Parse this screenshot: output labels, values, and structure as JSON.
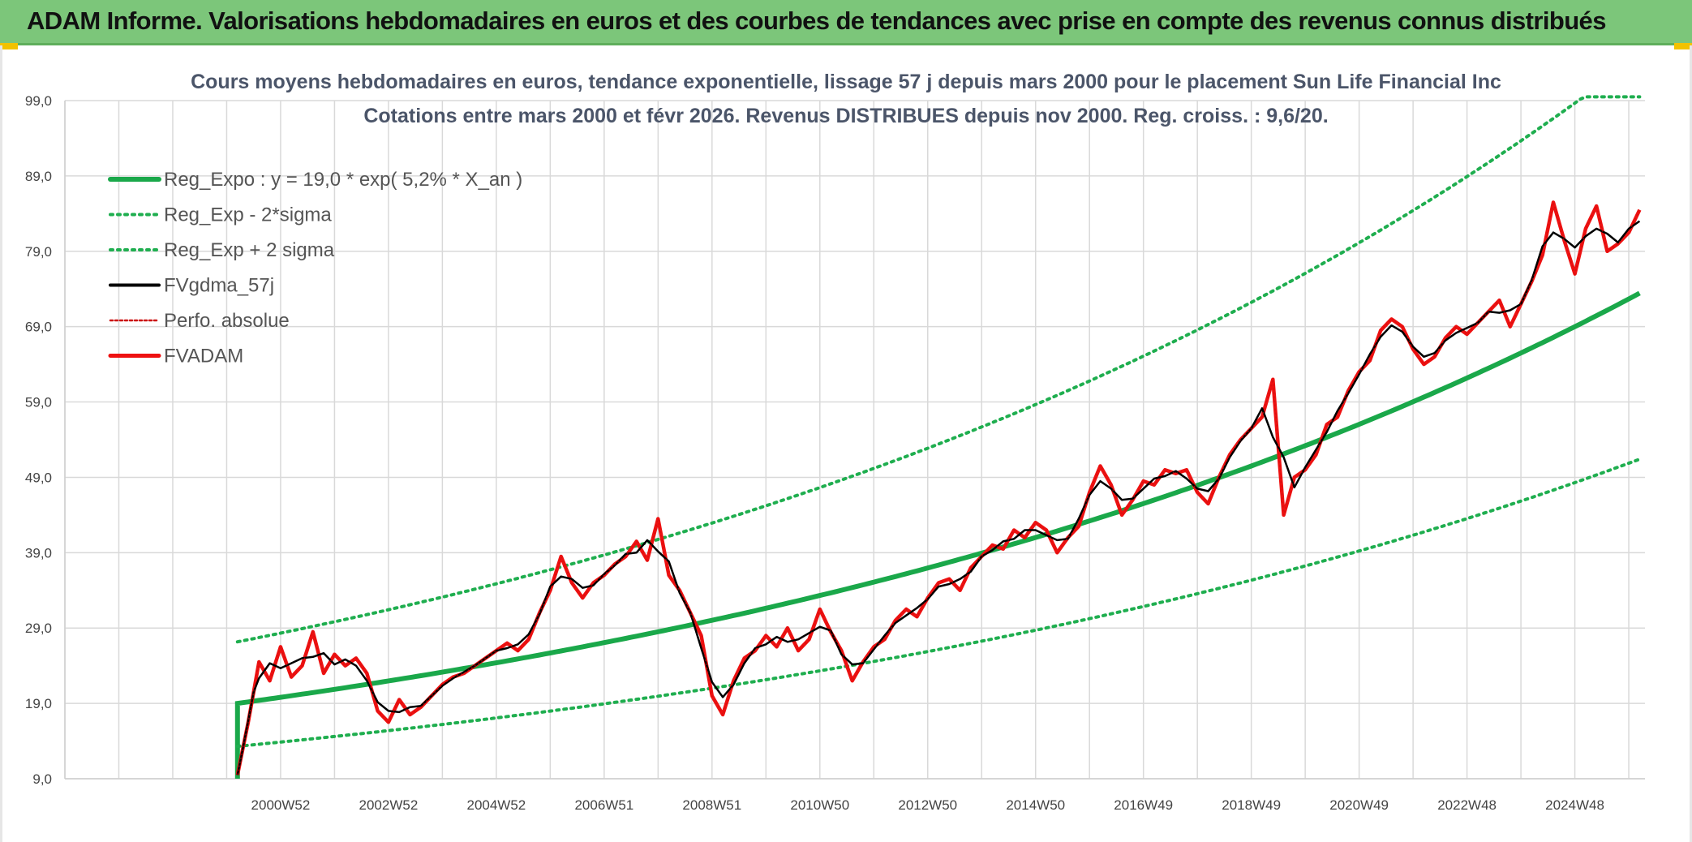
{
  "header": {
    "title": "ADAM Informe. Valorisations hebdomadaires en euros et des courbes de tendances avec prise en compte des revenus connus distribués"
  },
  "colors": {
    "banner": "#7cc67a",
    "reg_green": "#1aa84a",
    "sigma_green": "#1fae4f",
    "fvgdma": "#000000",
    "fvadam": "#ee1111",
    "perfo": "#cc1111",
    "grid": "#d9d9d9"
  },
  "chart_data": {
    "type": "line",
    "title": "Cours moyens hebdomadaires en euros, tendance exponentielle, lissage 57 j depuis mars 2000 pour le placement Sun Life Financial Inc",
    "subtitle": "Cotations entre mars 2000 et févr 2026. Revenus DISTRIBUES depuis nov 2000. Reg. croiss. : 9,6/20.",
    "ylim": [
      9,
      99
    ],
    "y_ticks": [
      "99,0",
      "89,0",
      "79,0",
      "69,0",
      "59,0",
      "49,0",
      "39,0",
      "29,0",
      "19,0",
      "9,0"
    ],
    "x_range": [
      1997.0,
      2026.3
    ],
    "x_ticks": [
      {
        "label": "2000W52",
        "x": 2001.0
      },
      {
        "label": "2002W52",
        "x": 2003.0
      },
      {
        "label": "2004W52",
        "x": 2005.0
      },
      {
        "label": "2006W51",
        "x": 2007.0
      },
      {
        "label": "2008W51",
        "x": 2009.0
      },
      {
        "label": "2010W50",
        "x": 2011.0
      },
      {
        "label": "2012W50",
        "x": 2013.0
      },
      {
        "label": "2014W50",
        "x": 2015.0
      },
      {
        "label": "2016W49",
        "x": 2017.0
      },
      {
        "label": "2018W49",
        "x": 2019.0
      },
      {
        "label": "2020W49",
        "x": 2021.0
      },
      {
        "label": "2022W48",
        "x": 2023.0
      },
      {
        "label": "2024W48",
        "x": 2025.0
      }
    ],
    "legend": [
      {
        "key": "reg",
        "label": "Reg_Expo : y = 19,0 * exp( 5,2% *  X_an )"
      },
      {
        "key": "minus",
        "label": "Reg_Exp - 2*sigma"
      },
      {
        "key": "plus",
        "label": "Reg_Exp + 2 sigma"
      },
      {
        "key": "fvgdma",
        "label": "FVgdma_57j"
      },
      {
        "key": "perfo",
        "label": "Perfo. absolue"
      },
      {
        "key": "fvadam",
        "label": "FVADAM"
      }
    ],
    "regression": {
      "a": 19.0,
      "rate": 0.052,
      "start": 2000.2,
      "end": 2026.25,
      "minus_factor": 0.7,
      "plus_factor": 1.43,
      "cap": 99.5
    },
    "fvadam": {
      "x": [
        2000.2,
        2000.3,
        2000.4,
        2000.5,
        2000.6,
        2000.8,
        2001.0,
        2001.2,
        2001.4,
        2001.6,
        2001.8,
        2002.0,
        2002.2,
        2002.4,
        2002.6,
        2002.8,
        2003.0,
        2003.2,
        2003.4,
        2003.6,
        2003.8,
        2004.0,
        2004.2,
        2004.4,
        2004.6,
        2004.8,
        2005.0,
        2005.2,
        2005.4,
        2005.6,
        2005.8,
        2006.0,
        2006.2,
        2006.4,
        2006.6,
        2006.8,
        2007.0,
        2007.2,
        2007.4,
        2007.6,
        2007.8,
        2008.0,
        2008.2,
        2008.4,
        2008.6,
        2008.8,
        2009.0,
        2009.2,
        2009.4,
        2009.6,
        2009.8,
        2010.0,
        2010.2,
        2010.4,
        2010.6,
        2010.8,
        2011.0,
        2011.2,
        2011.4,
        2011.6,
        2011.8,
        2012.0,
        2012.2,
        2012.4,
        2012.6,
        2012.8,
        2013.0,
        2013.2,
        2013.4,
        2013.6,
        2013.8,
        2014.0,
        2014.2,
        2014.4,
        2014.6,
        2014.8,
        2015.0,
        2015.2,
        2015.4,
        2015.6,
        2015.8,
        2016.0,
        2016.2,
        2016.4,
        2016.6,
        2016.8,
        2017.0,
        2017.2,
        2017.4,
        2017.6,
        2017.8,
        2018.0,
        2018.2,
        2018.4,
        2018.6,
        2018.8,
        2019.0,
        2019.2,
        2019.4,
        2019.6,
        2019.8,
        2020.0,
        2020.2,
        2020.4,
        2020.6,
        2020.8,
        2021.0,
        2021.2,
        2021.4,
        2021.6,
        2021.8,
        2022.0,
        2022.2,
        2022.4,
        2022.6,
        2022.8,
        2023.0,
        2023.2,
        2023.4,
        2023.6,
        2023.8,
        2024.0,
        2024.2,
        2024.4,
        2024.6,
        2024.8,
        2025.0,
        2025.2,
        2025.4,
        2025.6,
        2025.8,
        2026.0,
        2026.2
      ],
      "y": [
        9.5,
        13.0,
        16.5,
        20.5,
        24.5,
        22.0,
        26.5,
        22.5,
        24.0,
        28.5,
        23.0,
        25.5,
        24.0,
        25.0,
        23.0,
        18.0,
        16.5,
        19.5,
        17.5,
        18.5,
        20.0,
        21.5,
        22.5,
        23.0,
        24.0,
        25.0,
        26.0,
        27.0,
        26.0,
        27.5,
        31.0,
        34.0,
        38.5,
        35.0,
        33.0,
        35.0,
        36.0,
        37.5,
        38.5,
        40.5,
        38.0,
        43.5,
        36.0,
        34.0,
        31.0,
        28.0,
        20.0,
        17.5,
        22.0,
        25.0,
        26.0,
        28.0,
        26.5,
        29.0,
        26.0,
        27.5,
        31.5,
        28.5,
        26.0,
        22.0,
        24.5,
        26.5,
        27.5,
        30.0,
        31.5,
        30.5,
        33.0,
        35.0,
        35.5,
        34.0,
        37.0,
        38.5,
        40.0,
        39.5,
        42.0,
        41.0,
        43.0,
        42.0,
        39.0,
        41.0,
        42.5,
        47.0,
        50.5,
        48.0,
        44.0,
        46.0,
        48.5,
        48.0,
        50.0,
        49.5,
        50.0,
        47.0,
        45.5,
        49.0,
        52.0,
        54.0,
        55.5,
        57.0,
        62.0,
        44.0,
        49.0,
        50.0,
        52.0,
        56.0,
        57.0,
        60.5,
        63.0,
        64.5,
        68.5,
        70.0,
        69.0,
        66.0,
        64.0,
        65.0,
        67.5,
        69.0,
        68.0,
        69.5,
        71.0,
        72.5,
        69.0,
        72.0,
        75.0,
        78.5,
        85.5,
        80.5,
        76.0,
        82.0,
        85.0,
        79.0,
        80.0,
        81.5,
        84.5
      ]
    }
  }
}
